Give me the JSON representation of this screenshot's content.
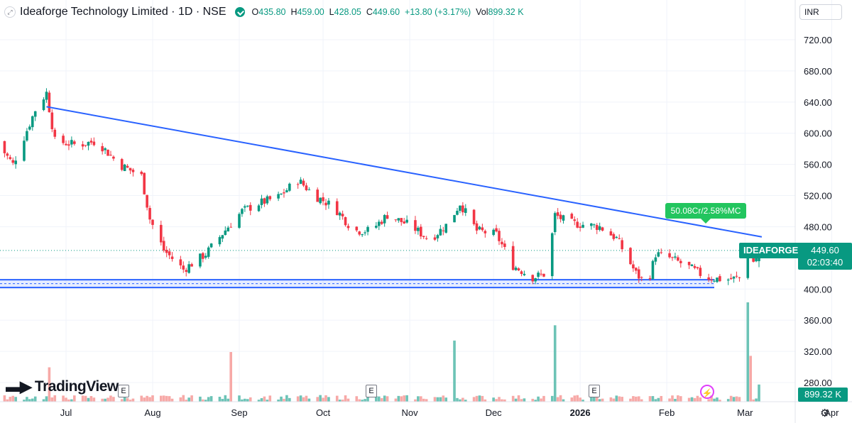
{
  "header": {
    "title": "Ideaforge Technology Limited · 1D · NSE",
    "open_label": "O",
    "open": "435.80",
    "high_label": "H",
    "high": "459.00",
    "low_label": "L",
    "low": "428.05",
    "close_label": "C",
    "close": "449.60",
    "change": "+13.80 (+3.17%)",
    "vol_label": "Vol",
    "volume": "899.32 K"
  },
  "currency": "INR",
  "symbol_tag": "IDEAFORGE",
  "price_tag": {
    "price": "449.60",
    "countdown": "02:03:40"
  },
  "volume_tag": "899.32 K",
  "annotation": "50.08Cr/2.58%MC",
  "logo_text": "TradingView",
  "event_label": "E",
  "colors": {
    "up": "#089981",
    "down": "#f23645",
    "trendline": "#2962ff",
    "up_vol": "#6cc3b6",
    "down_vol": "#f7a9a7"
  },
  "chart_data": {
    "type": "candlestick",
    "title": "Ideaforge Technology Limited · 1D · NSE",
    "y_ticks": [
      "720.00",
      "680.00",
      "640.00",
      "600.00",
      "560.00",
      "520.00",
      "480.00",
      "440.00",
      "400.00",
      "360.00",
      "320.00",
      "280.00"
    ],
    "x_ticks": [
      "Jul",
      "Aug",
      "Sep",
      "Oct",
      "Nov",
      "Dec",
      "2026",
      "Feb",
      "Mar",
      "Apr"
    ],
    "ylim": [
      262,
      762
    ],
    "last_price": 449.6,
    "trendline": {
      "from": [
        "2025-06-24",
        634
      ],
      "to": [
        "2026-03-07",
        467
      ]
    },
    "support_zone": [
      402,
      412
    ],
    "anchors": [
      [
        "2025-06-06",
        590
      ],
      [
        "2025-06-12",
        560
      ],
      [
        "2025-06-20",
        630
      ],
      [
        "2025-06-24",
        652
      ],
      [
        "2025-06-27",
        590
      ],
      [
        "2025-07-05",
        585
      ],
      [
        "2025-07-12",
        590
      ],
      [
        "2025-07-20",
        560
      ],
      [
        "2025-07-28",
        545
      ],
      [
        "2025-07-31",
        490
      ],
      [
        "2025-08-05",
        450
      ],
      [
        "2025-08-12",
        425
      ],
      [
        "2025-08-20",
        445
      ],
      [
        "2025-08-28",
        480
      ],
      [
        "2025-09-02",
        500
      ],
      [
        "2025-09-08",
        510
      ],
      [
        "2025-09-15",
        518
      ],
      [
        "2025-09-22",
        540
      ],
      [
        "2025-09-28",
        520
      ],
      [
        "2025-10-05",
        505
      ],
      [
        "2025-10-12",
        475
      ],
      [
        "2025-10-18",
        475
      ],
      [
        "2025-10-24",
        495
      ],
      [
        "2025-11-02",
        480
      ],
      [
        "2025-11-08",
        463
      ],
      [
        "2025-11-15",
        485
      ],
      [
        "2025-11-19",
        510
      ],
      [
        "2025-11-25",
        475
      ],
      [
        "2025-12-02",
        470
      ],
      [
        "2025-12-08",
        430
      ],
      [
        "2025-12-15",
        415
      ],
      [
        "2025-12-20",
        420
      ],
      [
        "2025-12-23",
        495
      ],
      [
        "2025-12-28",
        485
      ],
      [
        "2026-01-08",
        480
      ],
      [
        "2026-01-14",
        465
      ],
      [
        "2026-01-21",
        420
      ],
      [
        "2026-01-25",
        405
      ],
      [
        "2026-01-28",
        445
      ],
      [
        "2026-02-02",
        440
      ],
      [
        "2026-02-08",
        430
      ],
      [
        "2026-02-15",
        415
      ],
      [
        "2026-02-22",
        412
      ],
      [
        "2026-02-28",
        415
      ],
      [
        "2026-03-02",
        455
      ],
      [
        "2026-03-04",
        436
      ],
      [
        "2026-03-06",
        449.6
      ]
    ],
    "volume_spikes": [
      [
        "2025-06-25",
        18
      ],
      [
        "2025-08-29",
        26
      ],
      [
        "2025-11-17",
        32
      ],
      [
        "2025-12-23",
        40
      ],
      [
        "2026-02-01",
        8
      ],
      [
        "2026-03-02",
        52
      ],
      [
        "2026-03-03",
        24
      ],
      [
        "2026-03-06",
        8.99
      ]
    ],
    "volume_unit": "L",
    "events": [
      "2025-07-24",
      "2025-11-06",
      "2026-01-26"
    ]
  }
}
